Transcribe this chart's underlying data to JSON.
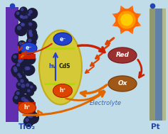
{
  "bg_color": "#c0dce8",
  "tio2_color": "#6030b0",
  "tio2_label": "TiO₂",
  "pt_label": "Pt",
  "electrolyte_label": "Electrolyte",
  "cds_label": "CdS",
  "hv_label": "hν",
  "e_label": "e⁻",
  "h_label": "h⁺",
  "red_label": "Red",
  "ox_label": "Ox",
  "sun_color_outer": "#ff6600",
  "sun_color_inner": "#ff9900",
  "sun_color_center": "#ffcc00",
  "arrow_orange": "#e06800",
  "arrow_red": "#cc2000",
  "cds_fill": "#d8c828",
  "cds_energy_line": "#aadd00",
  "e_blue": "#2244cc",
  "h_red": "#dd4400",
  "red_fill": "#9a3030",
  "ox_fill": "#a05818",
  "qd_dark": "#1a1a3a",
  "qd_edge": "#cccc00",
  "qd_shine": "#4444aa",
  "pt_left_color": "#909870",
  "pt_right_color": "#6080a8",
  "pt_mid_color": "#b0b890",
  "dot_blue": "#2244bb",
  "tio2_text_color": "#2244aa",
  "pt_text_color": "#2244aa",
  "electrolyte_text_color": "#3366cc"
}
